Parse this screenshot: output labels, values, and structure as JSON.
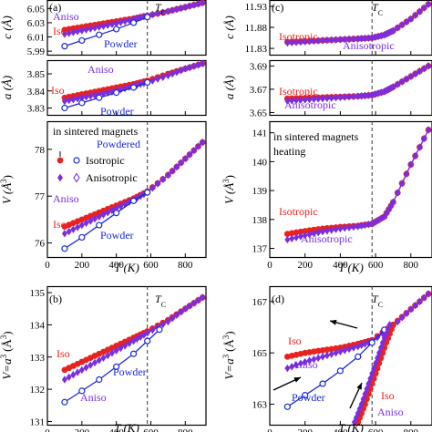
{
  "colors": {
    "iso": "#e8231f",
    "aniso": "#7a2ee0",
    "powder": "#1a2ad8",
    "tc": "#333333"
  },
  "panels": {
    "a_c": {
      "letter": "(a)",
      "ylabel": "c (Å)",
      "ticks": [
        "5.99",
        "6.01",
        "6.03",
        "6.05"
      ],
      "tc": "T",
      "tc_sub": "C",
      "labels": {
        "aniso": "Aniso",
        "iso": "Iso",
        "powder": "Powder"
      }
    },
    "a_a": {
      "ylabel": "a (Å)",
      "ticks": [
        "3.83",
        "3.84",
        "3.85"
      ],
      "labels": {
        "aniso": "Aniso",
        "iso": "Iso",
        "powder": "Powder"
      }
    },
    "a_v": {
      "ylabel": "V (Å",
      "ylabel_sup": "3",
      "ylabel_end": ")",
      "ticks": [
        "76",
        "77",
        "78"
      ],
      "xticks": [
        "0",
        "200",
        "400",
        "600",
        "800"
      ],
      "xlabel": "T (K)",
      "legend_head": "in sintered magnets",
      "legend_powdered": "Powdered",
      "legend_iso": "Isotropic",
      "legend_aniso": "Anisotropic",
      "labels": {
        "iso": "Iso",
        "aniso": "Aniso",
        "powder": "Powder"
      }
    },
    "b": {
      "letter": "(b)",
      "ylabel": "V=a",
      "ylabel_sup": "3",
      "ylabel_unit": "(Å",
      "ylabel_unit_sup": "3",
      "ylabel_end": ")",
      "ticks": [
        "131",
        "132",
        "133",
        "134",
        "135"
      ],
      "xticks": [
        "0",
        "200",
        "400",
        "600",
        "800"
      ],
      "xlabel": "T (K)",
      "tc": "T",
      "tc_sub": "C",
      "labels": {
        "iso": "Iso",
        "powder": "Powder",
        "aniso": "Aniso"
      }
    },
    "c_c": {
      "letter": "(c)",
      "ylabel": "c (Å)",
      "ticks": [
        "11.83",
        "11.88",
        "11.93"
      ],
      "tc": "T",
      "tc_sub": "C",
      "labels": {
        "iso": "Isotropic",
        "aniso": "Anisotropic"
      }
    },
    "c_a": {
      "ylabel": "a (Å)",
      "ticks": [
        "3.65",
        "3.67",
        "3.69"
      ],
      "labels": {
        "iso": "Isotropic",
        "aniso": "Anisotropic"
      }
    },
    "c_v": {
      "ylabel": "V (Å",
      "ylabel_sup": "3",
      "ylabel_end": ")",
      "ticks": [
        "137",
        "138",
        "139",
        "140",
        "141"
      ],
      "xticks": [
        "0",
        "200",
        "400",
        "600",
        "800"
      ],
      "xlabel": "T (K)",
      "note1": "in sintered magnets",
      "note2": "heating",
      "labels": {
        "iso": "Isotropic",
        "aniso": "Anisotropic"
      }
    },
    "d": {
      "letter": "(d)",
      "ylabel": "V=a",
      "ylabel_sup": "3",
      "ylabel_unit": "(Å",
      "ylabel_unit_sup": "3",
      "ylabel_end": ")",
      "ticks": [
        "163",
        "165",
        "167"
      ],
      "xticks": [
        "0",
        "200",
        "400",
        "600",
        "800"
      ],
      "xlabel": "T (K)",
      "tc": "T",
      "tc_sub": "C",
      "labels": {
        "iso": "Iso",
        "aniso": "Aniso",
        "powder": "Powder",
        "iso2": "Iso",
        "aniso2": "Aniso"
      }
    }
  },
  "chart_data": [
    {
      "panel": "a_c",
      "type": "line",
      "xlim": [
        0,
        920
      ],
      "ylim": [
        5.985,
        6.062
      ],
      "tc_x": 580,
      "series": [
        {
          "name": "Iso",
          "color_key": "iso",
          "marker": "dot",
          "x": [
            100,
            200,
            300,
            400,
            500,
            580,
            700,
            800,
            900
          ],
          "y": [
            6.02,
            6.024,
            6.028,
            6.032,
            6.036,
            6.04,
            6.046,
            6.052,
            6.058
          ]
        },
        {
          "name": "Aniso",
          "color_key": "aniso",
          "marker": "diamond",
          "x": [
            100,
            200,
            300,
            400,
            500,
            580,
            700,
            800,
            900
          ],
          "y": [
            6.014,
            6.019,
            6.024,
            6.029,
            6.035,
            6.04,
            6.046,
            6.052,
            6.058
          ]
        },
        {
          "name": "Powder",
          "color_key": "powder",
          "marker": "circle",
          "x": [
            100,
            200,
            300,
            400,
            500,
            580
          ],
          "y": [
            5.997,
            6.005,
            6.013,
            6.021,
            6.03,
            6.038
          ]
        }
      ]
    },
    {
      "panel": "a_a",
      "type": "line",
      "xlim": [
        0,
        920
      ],
      "ylim": [
        3.826,
        3.858
      ],
      "tc_x": 580,
      "series": [
        {
          "name": "Iso",
          "color_key": "iso",
          "marker": "dot",
          "x": [
            100,
            200,
            300,
            400,
            500,
            580,
            700,
            800,
            900
          ],
          "y": [
            3.836,
            3.838,
            3.84,
            3.842,
            3.844,
            3.846,
            3.85,
            3.853,
            3.856
          ]
        },
        {
          "name": "Aniso",
          "color_key": "aniso",
          "marker": "diamond",
          "x": [
            100,
            200,
            300,
            400,
            500,
            580,
            700,
            800,
            900
          ],
          "y": [
            3.834,
            3.836,
            3.838,
            3.84,
            3.843,
            3.845,
            3.849,
            3.853,
            3.856
          ]
        },
        {
          "name": "Powder",
          "color_key": "powder",
          "marker": "circle",
          "x": [
            100,
            200,
            300,
            400,
            500,
            580
          ],
          "y": [
            3.83,
            3.833,
            3.836,
            3.839,
            3.842,
            3.845
          ]
        }
      ]
    },
    {
      "panel": "a_v",
      "type": "line",
      "xlim": [
        0,
        920
      ],
      "ylim": [
        75.7,
        78.6
      ],
      "tc_x": 580,
      "series": [
        {
          "name": "Iso",
          "color_key": "iso",
          "marker": "dot",
          "x": [
            100,
            200,
            300,
            400,
            500,
            580,
            700,
            800,
            900
          ],
          "y": [
            76.35,
            76.5,
            76.65,
            76.8,
            76.95,
            77.1,
            77.45,
            77.8,
            78.15
          ]
        },
        {
          "name": "Aniso",
          "color_key": "aniso",
          "marker": "diamond",
          "x": [
            100,
            200,
            300,
            400,
            500,
            580,
            700,
            800,
            900
          ],
          "y": [
            76.2,
            76.38,
            76.56,
            76.74,
            76.92,
            77.08,
            77.45,
            77.8,
            78.15
          ]
        },
        {
          "name": "Powder",
          "color_key": "powder",
          "marker": "circle",
          "x": [
            100,
            200,
            300,
            400,
            500,
            580
          ],
          "y": [
            75.88,
            76.12,
            76.38,
            76.64,
            76.9,
            77.08
          ]
        }
      ]
    },
    {
      "panel": "b",
      "type": "line",
      "xlim": [
        0,
        920
      ],
      "ylim": [
        130.9,
        135.2
      ],
      "tc_x": 580,
      "series": [
        {
          "name": "Iso",
          "color_key": "iso",
          "marker": "dot",
          "x": [
            100,
            200,
            300,
            400,
            500,
            580,
            700,
            800,
            900
          ],
          "y": [
            132.6,
            132.85,
            133.1,
            133.35,
            133.6,
            133.8,
            134.15,
            134.5,
            134.85
          ]
        },
        {
          "name": "Aniso",
          "color_key": "aniso",
          "marker": "diamond",
          "x": [
            100,
            200,
            300,
            400,
            500,
            580,
            700,
            800,
            900
          ],
          "y": [
            132.3,
            132.6,
            132.9,
            133.2,
            133.5,
            133.75,
            134.1,
            134.5,
            134.85
          ]
        },
        {
          "name": "Powder",
          "color_key": "powder",
          "marker": "circle",
          "x": [
            100,
            200,
            300,
            400,
            500,
            580,
            650
          ],
          "y": [
            131.6,
            131.95,
            132.3,
            132.7,
            133.1,
            133.5,
            133.85
          ]
        }
      ]
    },
    {
      "panel": "c_c",
      "type": "line",
      "xlim": [
        0,
        920
      ],
      "ylim": [
        11.815,
        11.945
      ],
      "tc_x": 580,
      "series": [
        {
          "name": "Isotropic",
          "color_key": "iso",
          "marker": "dot",
          "x": [
            100,
            200,
            300,
            400,
            500,
            580,
            650,
            700,
            800,
            900
          ],
          "y": [
            11.845,
            11.847,
            11.849,
            11.851,
            11.853,
            11.855,
            11.862,
            11.872,
            11.9,
            11.935
          ]
        },
        {
          "name": "Anisotropic",
          "color_key": "aniso",
          "marker": "diamond",
          "x": [
            100,
            200,
            300,
            400,
            500,
            580,
            650,
            700,
            800,
            900
          ],
          "y": [
            11.843,
            11.846,
            11.849,
            11.851,
            11.853,
            11.855,
            11.862,
            11.872,
            11.9,
            11.935
          ]
        }
      ]
    },
    {
      "panel": "c_a",
      "type": "line",
      "xlim": [
        0,
        920
      ],
      "ylim": [
        3.648,
        3.695
      ],
      "tc_x": 580,
      "series": [
        {
          "name": "Isotropic",
          "color_key": "iso",
          "marker": "dot",
          "x": [
            100,
            200,
            300,
            400,
            500,
            580,
            650,
            700,
            800,
            900
          ],
          "y": [
            3.662,
            3.6625,
            3.663,
            3.6635,
            3.664,
            3.665,
            3.668,
            3.672,
            3.681,
            3.69
          ]
        },
        {
          "name": "Anisotropic",
          "color_key": "aniso",
          "marker": "diamond",
          "x": [
            100,
            200,
            300,
            400,
            500,
            580,
            650,
            700,
            800,
            900
          ],
          "y": [
            3.66,
            3.661,
            3.662,
            3.663,
            3.664,
            3.665,
            3.668,
            3.672,
            3.681,
            3.69
          ]
        }
      ]
    },
    {
      "panel": "c_v",
      "type": "line",
      "xlim": [
        0,
        920
      ],
      "ylim": [
        136.7,
        141.4
      ],
      "tc_x": 580,
      "series": [
        {
          "name": "Isotropic",
          "color_key": "iso",
          "marker": "dot",
          "x": [
            100,
            200,
            300,
            400,
            500,
            580,
            650,
            700,
            800,
            900
          ],
          "y": [
            137.5,
            137.6,
            137.68,
            137.74,
            137.78,
            137.85,
            138.1,
            138.6,
            139.9,
            141.1
          ]
        },
        {
          "name": "Anisotropic",
          "color_key": "aniso",
          "marker": "diamond",
          "x": [
            100,
            200,
            300,
            400,
            500,
            580,
            650,
            700,
            800,
            900
          ],
          "y": [
            137.3,
            137.45,
            137.58,
            137.68,
            137.76,
            137.85,
            138.1,
            138.6,
            139.9,
            141.1
          ]
        }
      ]
    },
    {
      "panel": "d",
      "type": "line",
      "xlim": [
        0,
        920
      ],
      "ylim": [
        162.2,
        167.6
      ],
      "tc_x": 580,
      "series": [
        {
          "name": "Iso",
          "color_key": "iso",
          "marker": "dot",
          "x": [
            100,
            200,
            300,
            400,
            500,
            580,
            700,
            800,
            900
          ],
          "y": [
            164.85,
            165.0,
            165.1,
            165.2,
            165.35,
            165.5,
            166.1,
            166.7,
            167.3
          ]
        },
        {
          "name": "Aniso",
          "color_key": "aniso",
          "marker": "diamond",
          "x": [
            100,
            200,
            300,
            400,
            500,
            580,
            700,
            800,
            900
          ],
          "y": [
            164.4,
            164.65,
            164.85,
            165.05,
            165.25,
            165.45,
            166.05,
            166.7,
            167.3
          ]
        },
        {
          "name": "Powder",
          "color_key": "powder",
          "marker": "circle",
          "x": [
            100,
            200,
            300,
            400,
            500,
            580,
            650
          ],
          "y": [
            162.9,
            163.35,
            163.8,
            164.3,
            164.85,
            165.4,
            165.9
          ]
        },
        {
          "name": "Iso",
          "color_key": "iso",
          "marker": "dot",
          "x": [
            500,
            540,
            580,
            620,
            660,
            700
          ],
          "y": [
            162.3,
            163.0,
            163.8,
            164.6,
            165.4,
            166.1
          ]
        },
        {
          "name": "Aniso",
          "color_key": "aniso",
          "marker": "diamond",
          "x": [
            480,
            520,
            560,
            600,
            640,
            680
          ],
          "y": [
            162.3,
            163.0,
            163.8,
            164.6,
            165.4,
            166.1
          ]
        }
      ]
    }
  ]
}
